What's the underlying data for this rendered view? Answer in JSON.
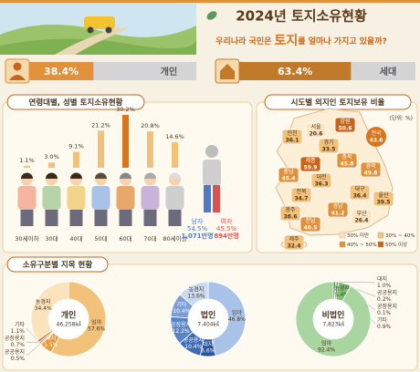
{
  "header": {
    "title": "2024년 토지소유현황",
    "subtitle": {
      "before": "우리나라 국민은 ",
      "highlight": "토지",
      "after": "를 얼마나 가지고 있을까?"
    }
  },
  "summary": [
    {
      "value": 38.4,
      "value_label": "38.4%",
      "label": "개인",
      "color": "#e0913a"
    },
    {
      "value": 63.4,
      "value_label": "63.4%",
      "label": "세대",
      "color": "#c17a2a"
    }
  ],
  "sections": [
    "연령대별, 성별 토지소유현황",
    "시도별 외지인 토지보유 비율",
    "소유구분별 지목 현황"
  ],
  "chart_data": [
    {
      "type": "bar",
      "categories": [
        "30세이하",
        "30대",
        "40대",
        "50대",
        "60대",
        "70대",
        "80세이상"
      ],
      "values": [
        1.1,
        3.0,
        9.1,
        21.2,
        30.2,
        20.8,
        14.6
      ],
      "value_labels": [
        "1.1%",
        "3.0%",
        "9.1%",
        "21.2%",
        "30.2%",
        "20.8%",
        "14.6%"
      ],
      "colors": [
        "#f2c17a",
        "#f2c17a",
        "#f2c17a",
        "#f2c17a",
        "#d9741f",
        "#f2c17a",
        "#f2c17a"
      ],
      "gender": [
        {
          "name": "남자",
          "value": 54.5,
          "value_label": "54.5%",
          "count": "1,071만명",
          "color": "#4f79c4"
        },
        {
          "name": "여자",
          "value": 45.5,
          "value_label": "45.5%",
          "count": "894만명",
          "color": "#d9534f"
        }
      ]
    },
    {
      "type": "map",
      "unit": "(단위: %)",
      "regions": [
        {
          "name": "강원",
          "value": 50.6,
          "color": "#c8651b"
        },
        {
          "name": "전국",
          "value": 43.6,
          "color": "#d9741f"
        },
        {
          "name": "서울",
          "value": 20.6,
          "color": "#fbe4bf"
        },
        {
          "name": "인천",
          "value": 36.1,
          "color": "#f2c17a"
        },
        {
          "name": "경기",
          "value": 33.5,
          "color": "#f2c17a"
        },
        {
          "name": "세종",
          "value": 59.9,
          "color": "#c8651b"
        },
        {
          "name": "충북",
          "value": 45.8,
          "color": "#e0913a"
        },
        {
          "name": "충남",
          "value": 45.4,
          "color": "#e0913a"
        },
        {
          "name": "대전",
          "value": 36.3,
          "color": "#f2c17a"
        },
        {
          "name": "경북",
          "value": 49.8,
          "color": "#e0913a"
        },
        {
          "name": "전북",
          "value": 34.7,
          "color": "#f2c17a"
        },
        {
          "name": "대구",
          "value": 36.4,
          "color": "#f2c17a"
        },
        {
          "name": "울산",
          "value": 39.5,
          "color": "#f2c17a"
        },
        {
          "name": "광주",
          "value": 38.6,
          "color": "#f2c17a"
        },
        {
          "name": "경남",
          "value": 41.2,
          "color": "#e0913a"
        },
        {
          "name": "부산",
          "value": 26.4,
          "color": "#fbe4bf"
        },
        {
          "name": "전남",
          "value": 40.5,
          "color": "#e0913a"
        },
        {
          "name": "제주",
          "value": 32.4,
          "color": "#f2c17a"
        }
      ],
      "legend": [
        {
          "label": "30% 미만",
          "color": "#fbe4bf"
        },
        {
          "label": "30% ~ 40%",
          "color": "#f2c17a"
        },
        {
          "label": "40% ~ 50%",
          "color": "#e0913a"
        },
        {
          "label": "50% 이상",
          "color": "#c8651b"
        }
      ]
    },
    {
      "type": "donut",
      "name": "개인",
      "total": "46,258㎢",
      "categories": [
        "임야",
        "대지",
        "공공용지",
        "공장용지",
        "기타",
        "농경지"
      ],
      "values": [
        57.6,
        5.5,
        0.5,
        0.7,
        1.1,
        34.4
      ],
      "value_labels": [
        "57.6%",
        "5.5%",
        "0.5%",
        "0.7%",
        "1.1%",
        "34.4%"
      ],
      "colors": [
        "#f3c27a",
        "#e89a3c",
        "#a85a18",
        "#c06a20",
        "#d2782a",
        "#fbe3bd"
      ]
    },
    {
      "type": "donut",
      "name": "법인",
      "total": "7,404㎢",
      "categories": [
        "임야",
        "대지",
        "공공용지",
        "공장용지",
        "기타",
        "농경지"
      ],
      "values": [
        46.8,
        6.6,
        10.4,
        12.2,
        10.4,
        13.6
      ],
      "value_labels": [
        "46.8%",
        "6.6%",
        "10.4%",
        "12.2%",
        "10.4%",
        "13.6%"
      ],
      "colors": [
        "#a9c3e8",
        "#2a559e",
        "#3d6bb5",
        "#5b84c6",
        "#7a9fd6",
        "#c9d9f1"
      ]
    },
    {
      "type": "donut",
      "name": "비법인",
      "total": "7,823㎢",
      "categories": [
        "대지",
        "공공용지",
        "공장용지",
        "기타",
        "농경지",
        "임야"
      ],
      "values": [
        1.0,
        0.2,
        0.1,
        0.9,
        5.4,
        92.4
      ],
      "value_labels": [
        "1.0%",
        "0.2%",
        "0.1%",
        "0.9%",
        "5.4%",
        "92.4%"
      ],
      "colors": [
        "#3f8a45",
        "#2f6f36",
        "#245a2b",
        "#5aa35f",
        "#7cbf7a",
        "#a8d5a0"
      ]
    }
  ]
}
